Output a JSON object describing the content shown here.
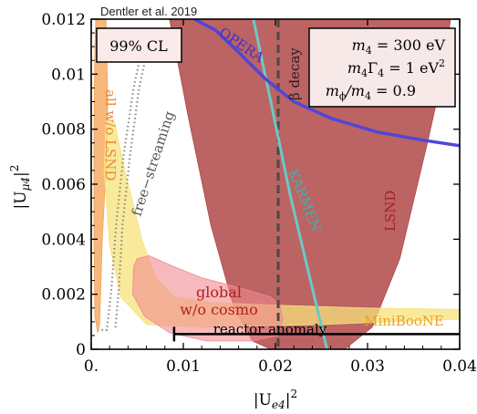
{
  "header": {
    "citation": "Dentler et al. 2019"
  },
  "chart_data": {
    "type": "area",
    "xlabel_main": "|U",
    "xlabel_sub": "e4",
    "xlabel_sup": "2",
    "ylabel_main": "|U",
    "ylabel_sub": "μ4",
    "ylabel_sup": "2",
    "xlim": [
      0,
      0.04
    ],
    "ylim": [
      0,
      0.012
    ],
    "xticks": [
      {
        "v": 0.0,
        "label": "0."
      },
      {
        "v": 0.01,
        "label": "0.01"
      },
      {
        "v": 0.02,
        "label": "0.02"
      },
      {
        "v": 0.03,
        "label": "0.03"
      },
      {
        "v": 0.04,
        "label": "0.04"
      }
    ],
    "yticks": [
      {
        "v": 0.0,
        "label": "0"
      },
      {
        "v": 0.002,
        "label": "0.002"
      },
      {
        "v": 0.004,
        "label": "0.004"
      },
      {
        "v": 0.006,
        "label": "0.006"
      },
      {
        "v": 0.008,
        "label": "0.008"
      },
      {
        "v": 0.01,
        "label": "0.01"
      },
      {
        "v": 0.012,
        "label": "0.012"
      }
    ],
    "confidence_label": "99% CL",
    "params": {
      "line1_a": "m",
      "line1_a_sub": "4",
      "line1_b": " = 300 eV",
      "line2_a": "m",
      "line2_a_sub": "4",
      "line2_b": "Γ",
      "line2_b_sub": "4",
      "line2_c": " = 1 eV",
      "line2_c_sup": "2",
      "line3_a": "m",
      "line3_a_sub": "ϕ",
      "line3_b": "/m",
      "line3_b_sub": "4",
      "line3_c": " = 0.9"
    },
    "colors": {
      "lsnd": "#b04848",
      "opera": "#5046d8",
      "karmen": "#6cc8c8",
      "global": "#f08a90",
      "miniboone": "#f7e27a",
      "allwo": "#f5a050",
      "freestream": "#8a8a8a",
      "beta": "#4a4a4a",
      "reactor": "#000000"
    },
    "series": [
      {
        "name": "LSND",
        "kind": "filled-region",
        "points": [
          [
            0.0085,
            0.012
          ],
          [
            0.0105,
            0.0085
          ],
          [
            0.013,
            0.0045
          ],
          [
            0.0155,
            0.0015
          ],
          [
            0.0175,
            0.0003
          ],
          [
            0.0195,
            0.0
          ],
          [
            0.0275,
            0.0
          ],
          [
            0.0305,
            0.0008
          ],
          [
            0.0335,
            0.0033
          ],
          [
            0.0365,
            0.0075
          ],
          [
            0.0385,
            0.0105
          ],
          [
            0.039,
            0.012
          ]
        ]
      },
      {
        "name": "MiniBooNE",
        "kind": "filled-region",
        "points": [
          [
            0.0025,
            0.0083
          ],
          [
            0.0038,
            0.0063
          ],
          [
            0.0055,
            0.004
          ],
          [
            0.007,
            0.0026
          ],
          [
            0.009,
            0.0019
          ],
          [
            0.013,
            0.0017
          ],
          [
            0.02,
            0.0016
          ],
          [
            0.03,
            0.0015
          ],
          [
            0.04,
            0.00145
          ],
          [
            0.04,
            0.0011
          ],
          [
            0.025,
            0.0009
          ],
          [
            0.012,
            0.0008
          ],
          [
            0.006,
            0.0009
          ],
          [
            0.0032,
            0.0019
          ],
          [
            0.002,
            0.0038
          ],
          [
            0.0014,
            0.0065
          ],
          [
            0.0016,
            0.0083
          ]
        ]
      },
      {
        "name": "global w/o cosmo",
        "kind": "filled-region",
        "points": [
          [
            0.005,
            0.0033
          ],
          [
            0.0063,
            0.0034
          ],
          [
            0.009,
            0.003
          ],
          [
            0.012,
            0.0026
          ],
          [
            0.0165,
            0.0022
          ],
          [
            0.0195,
            0.0019
          ],
          [
            0.0205,
            0.0016
          ],
          [
            0.0208,
            0.0011
          ],
          [
            0.0203,
            0.0005
          ],
          [
            0.0175,
            0.0003
          ],
          [
            0.0125,
            0.0003
          ],
          [
            0.0085,
            0.0006
          ],
          [
            0.0058,
            0.0012
          ],
          [
            0.0045,
            0.002
          ],
          [
            0.0046,
            0.003
          ]
        ]
      },
      {
        "name": "all w/o LSND",
        "kind": "filled-region",
        "points": [
          [
            0.0005,
            0.012
          ],
          [
            0.0016,
            0.012
          ],
          [
            0.0018,
            0.009
          ],
          [
            0.0016,
            0.0065
          ],
          [
            0.0012,
            0.004
          ],
          [
            0.001,
            0.0018
          ],
          [
            0.0009,
            0.0009
          ],
          [
            0.0007,
            0.0006
          ],
          [
            0.0004,
            0.0012
          ],
          [
            0.0003,
            0.004
          ],
          [
            0.0003,
            0.008
          ],
          [
            0.0004,
            0.011
          ]
        ]
      },
      {
        "name": "free-streaming",
        "kind": "dotted-band",
        "left": [
          [
            0.0057,
            0.0112
          ],
          [
            0.0046,
            0.0095
          ],
          [
            0.0035,
            0.007
          ],
          [
            0.0027,
            0.0045
          ],
          [
            0.0022,
            0.0022
          ],
          [
            0.0017,
            0.0007
          ],
          [
            0.0008,
            0.0007
          ]
        ],
        "right": [
          [
            0.0063,
            0.0112
          ],
          [
            0.0052,
            0.0095
          ],
          [
            0.0042,
            0.007
          ],
          [
            0.0034,
            0.0045
          ],
          [
            0.003,
            0.0022
          ],
          [
            0.0026,
            0.0007
          ]
        ]
      },
      {
        "name": "OPERA",
        "kind": "line",
        "points": [
          [
            0.0112,
            0.012
          ],
          [
            0.0135,
            0.0116
          ],
          [
            0.016,
            0.0108
          ],
          [
            0.019,
            0.0098
          ],
          [
            0.022,
            0.009
          ],
          [
            0.026,
            0.0084
          ],
          [
            0.031,
            0.0079
          ],
          [
            0.036,
            0.0076
          ],
          [
            0.04,
            0.0074
          ]
        ]
      },
      {
        "name": "KARMEN",
        "kind": "line",
        "points": [
          [
            0.0176,
            0.012
          ],
          [
            0.0195,
            0.009
          ],
          [
            0.0216,
            0.0056
          ],
          [
            0.0238,
            0.0025
          ],
          [
            0.0256,
            0.0
          ]
        ]
      },
      {
        "name": "β decay",
        "kind": "vline",
        "x": 0.0203
      },
      {
        "name": "reactor anomaly",
        "kind": "bracket",
        "x0": 0.009,
        "x1": 0.04,
        "y": 0.00055
      }
    ],
    "labels": {
      "opera": "OPERA",
      "karmen": "KARMEN",
      "lsnd": "LSND",
      "beta": "β decay",
      "global_1": "global",
      "global_2": "w/o cosmo",
      "reactor": "reactor anomaly",
      "miniboone": "MiniBooNE",
      "allwo": "all w/o LSND",
      "freestream": "free−streaming"
    }
  }
}
